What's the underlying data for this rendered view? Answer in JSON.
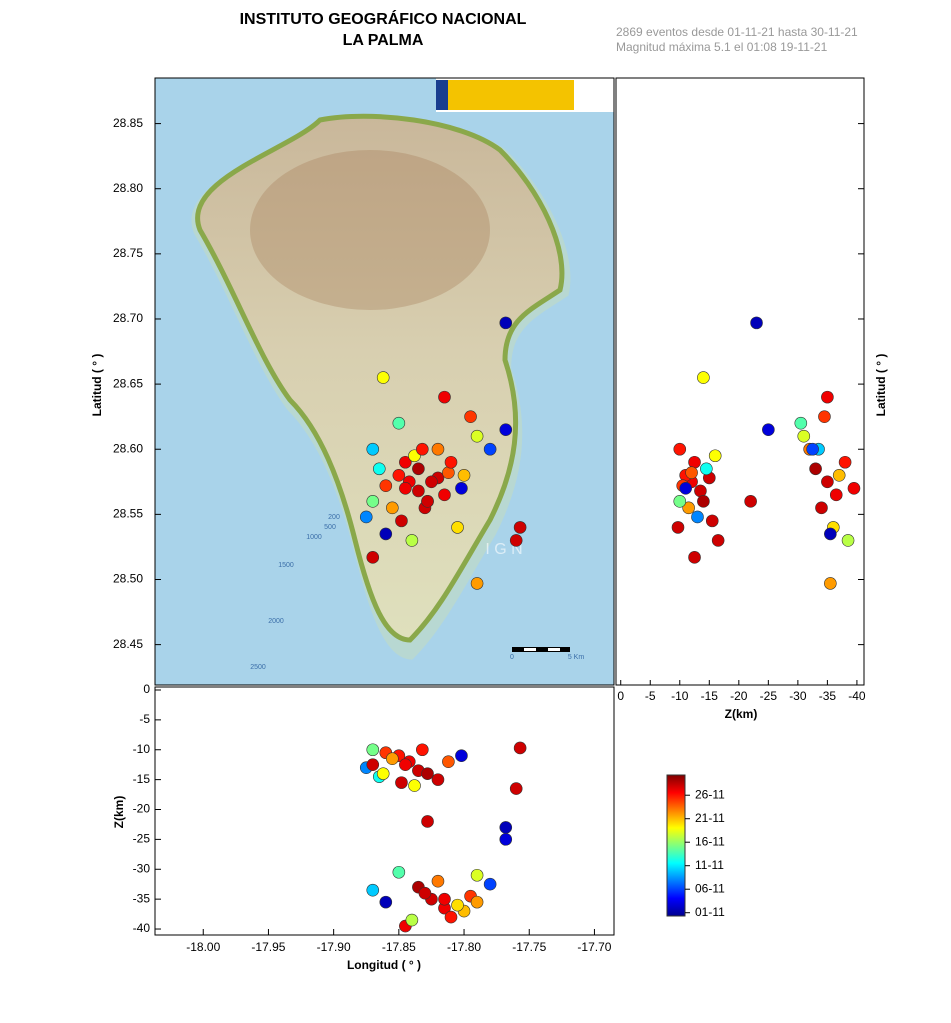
{
  "header": {
    "title": "INSTITUTO GEOGRÁFICO NACIONAL",
    "subtitle": "LA PALMA",
    "info": [
      "2869 eventos desde 01-11-21 hasta 30-11-21",
      "Magnitud máxima 5.1 el 01:08 19-11-21"
    ]
  },
  "chart_data": {
    "type": "scatter",
    "xlabel": "Longitud ( ° )",
    "ylabel": "Latitud ( ° )",
    "zlabel": "Z(km)",
    "xlim": [
      -18.037,
      -17.685
    ],
    "ylim": [
      28.419,
      28.885
    ],
    "zlim": [
      -41,
      0.5
    ],
    "z_right_lim": [
      0.8,
      -41.2
    ],
    "xticks": [
      {
        "value": -18,
        "label": "-18.00"
      },
      {
        "value": -17.95,
        "label": "-17.95"
      },
      {
        "value": -17.9,
        "label": "-17.90"
      },
      {
        "value": -17.85,
        "label": "-17.85"
      },
      {
        "value": -17.8,
        "label": "-17.80"
      },
      {
        "value": -17.75,
        "label": "-17.75"
      },
      {
        "value": -17.7,
        "label": "-17.70"
      }
    ],
    "yticks": [
      28.85,
      {
        "value": 28.8,
        "label": "28.80"
      },
      28.75,
      {
        "value": 28.7,
        "label": "28.70"
      },
      28.65,
      {
        "value": 28.6,
        "label": "28.60"
      },
      28.55,
      {
        "value": 28.5,
        "label": "28.50"
      },
      28.45
    ],
    "zticks": [
      0,
      -5,
      -10,
      -15,
      -20,
      -25,
      -30,
      -35,
      -40
    ],
    "colorbar": {
      "colormap": "jet",
      "lim": [
        0.3,
        30.3
      ],
      "ticks": [
        {
          "value": 1,
          "label": "01-11"
        },
        {
          "value": 6,
          "label": "06-11"
        },
        {
          "value": 11,
          "label": "11-11"
        },
        {
          "value": 16,
          "label": "16-11"
        },
        {
          "value": 21,
          "label": "21-11"
        },
        {
          "value": 26,
          "label": "26-11"
        }
      ]
    },
    "events": {
      "lon": [
        -17.842,
        -17.835,
        -17.85,
        -17.828,
        -17.845,
        -17.86,
        -17.82,
        -17.855,
        -17.87,
        -17.875,
        -17.812,
        -17.838,
        -17.865,
        -17.802,
        -17.848,
        -17.832,
        -17.825,
        -17.815,
        -17.835,
        -17.81,
        -17.83,
        -17.82,
        -17.8,
        -17.845,
        -17.79,
        -17.85,
        -17.805,
        -17.87,
        -17.795,
        -17.84,
        -17.78,
        -17.86,
        -17.815,
        -17.79,
        -17.768,
        -17.862,
        -17.757,
        -17.828,
        -17.768,
        -17.76,
        -17.87
      ],
      "lat": [
        28.575,
        28.568,
        28.58,
        28.56,
        28.59,
        28.572,
        28.578,
        28.555,
        28.56,
        28.548,
        28.582,
        28.595,
        28.585,
        28.57,
        28.545,
        28.6,
        28.575,
        28.565,
        28.585,
        28.59,
        28.555,
        28.6,
        28.58,
        28.57,
        28.61,
        28.62,
        28.54,
        28.6,
        28.625,
        28.53,
        28.6,
        28.535,
        28.64,
        28.497,
        28.697,
        28.655,
        28.54,
        28.56,
        28.615,
        28.53,
        28.517
      ],
      "depth": [
        -12,
        -13.5,
        -11,
        -14,
        -12.5,
        -10.5,
        -15,
        -11.5,
        -10,
        -13,
        -12,
        -16,
        -14.5,
        -11,
        -15.5,
        -10,
        -35,
        -36.5,
        -33,
        -38,
        -34,
        -32,
        -37,
        -39.5,
        -31,
        -30.5,
        -36,
        -33.5,
        -34.5,
        -38.5,
        -32.5,
        -35.5,
        -35,
        -35.5,
        -23,
        -14,
        -9.7,
        -22,
        -25,
        -16.5,
        -12.5
      ],
      "day": [
        27,
        28,
        26,
        29,
        27,
        25,
        28,
        22,
        15,
        8,
        24,
        19,
        12,
        3,
        28,
        26,
        28,
        27,
        29,
        26,
        28,
        23,
        21,
        27,
        18,
        14,
        20,
        10,
        25,
        17,
        6,
        2,
        27,
        22,
        2,
        19,
        28,
        28,
        3,
        28,
        28
      ]
    },
    "map_labels": [
      "200",
      "500",
      "1000",
      "1500",
      "2000",
      "2500",
      "I G N",
      "0",
      "5 Km"
    ]
  }
}
